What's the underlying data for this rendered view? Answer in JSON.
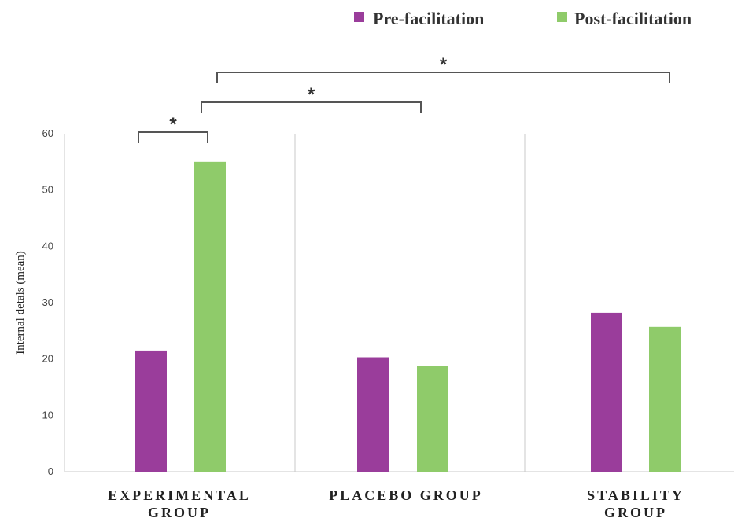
{
  "chart_data": {
    "type": "bar",
    "categories": [
      [
        "EXPERIMENTAL",
        "GROUP"
      ],
      [
        "PLACEBO GROUP"
      ],
      [
        "STABILITY",
        "GROUP"
      ]
    ],
    "series": [
      {
        "name": "Pre-facilitation",
        "values": [
          21.5,
          20.3,
          28.2
        ]
      },
      {
        "name": "Post-facilitation",
        "values": [
          55.0,
          18.7,
          25.7
        ]
      }
    ],
    "ylabel": "Internal detals (mean)",
    "ylim": [
      0,
      60
    ],
    "yticks": [
      0,
      10,
      20,
      30,
      40,
      50,
      60
    ],
    "grid": "vertical separators between groups",
    "legend": "top-right",
    "significance": [
      {
        "label": "*",
        "from": "EXPERIMENTAL GROUP Pre-facilitation",
        "to": "EXPERIMENTAL GROUP Post-facilitation"
      },
      {
        "label": "*",
        "from": "EXPERIMENTAL GROUP Post-facilitation",
        "to": "PLACEBO GROUP"
      },
      {
        "label": "*",
        "from": "EXPERIMENTAL GROUP Post-facilitation",
        "to": "STABILITY GROUP"
      }
    ],
    "colors": {
      "pre": "#9a3d9b",
      "post": "#8fcb6a",
      "axis": "#c8c8c8",
      "bracket": "#555555"
    }
  }
}
